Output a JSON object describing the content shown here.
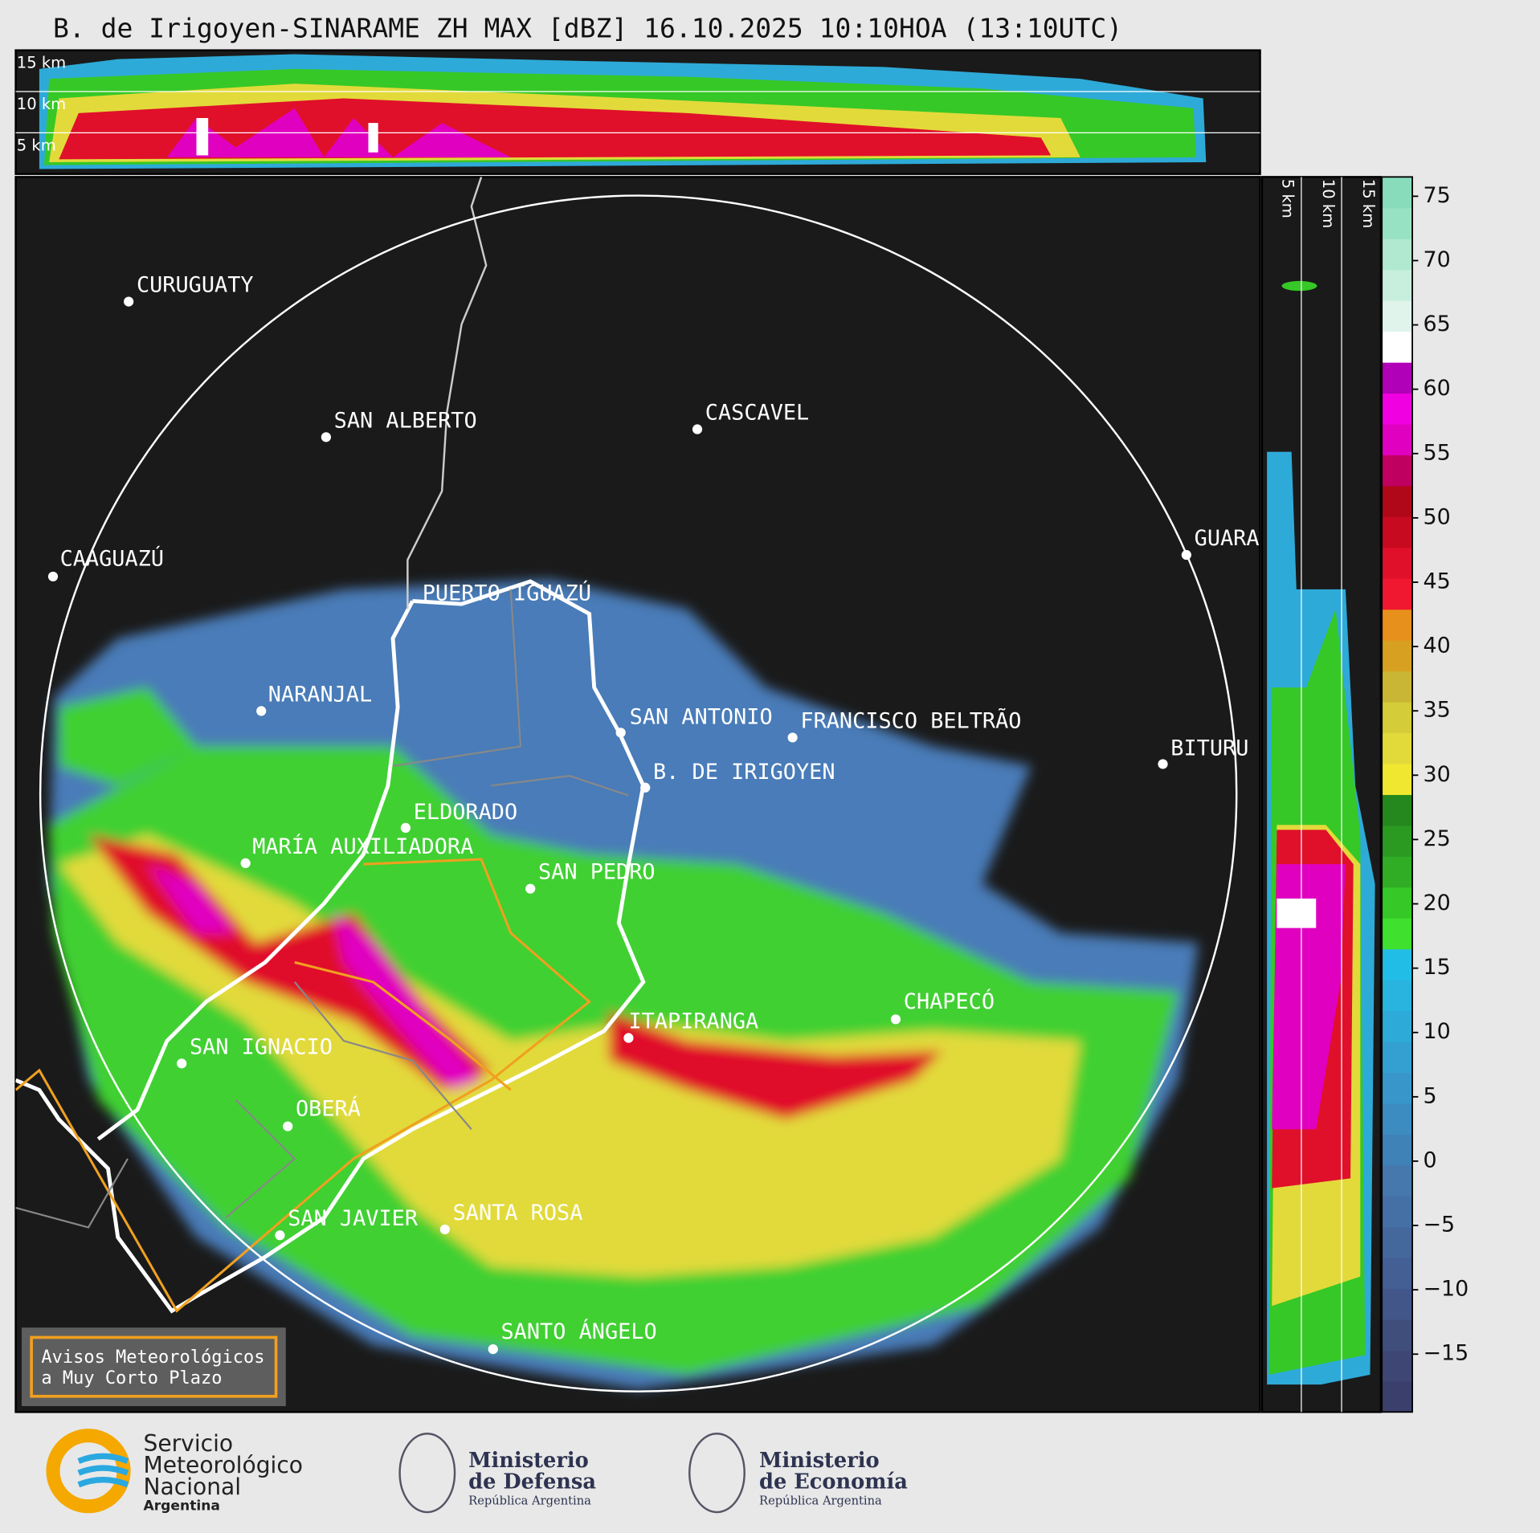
{
  "title": "B. de Irigoyen-SINARAME ZH MAX [dBZ] 16.10.2025 10:10HOA (13:10UTC)",
  "height_panel_labels": [
    "15 km",
    "10 km",
    "5 km"
  ],
  "side_panel_labels": [
    "5 km",
    "10 km",
    "15 km"
  ],
  "cities": [
    "CURUGUATY",
    "SAN ALBERTO",
    "CASCAVEL",
    "CAAGUAZÚ",
    "GUARA",
    "PUERTO IGUAZÚ",
    "NARANJAL",
    "SAN ANTONIO",
    "FRANCISCO BELTRÃO",
    "BITURU",
    "B. DE IRIGOYEN",
    "ELDORADO",
    "MARÍA AUXILIADORA",
    "SAN PEDRO",
    "ITAPIRANGA",
    "CHAPECÓ",
    "SAN IGNACIO",
    "OBERÁ",
    "SAN JAVIER",
    "SANTA ROSA",
    "SANTO ÁNGELO"
  ],
  "colorbar": {
    "lim": [
      -19.5,
      76.5
    ],
    "ticks": [
      75,
      70,
      65,
      60,
      55,
      50,
      45,
      40,
      35,
      30,
      25,
      20,
      15,
      10,
      5,
      0,
      {
        "value": -5,
        "label": "−5"
      },
      {
        "value": -10,
        "label": "−10"
      },
      {
        "value": -15,
        "label": "−15"
      }
    ],
    "colors": [
      "#3b3f6b",
      "#3e4673",
      "#404e7c",
      "#43568a",
      "#435f93",
      "#44679c",
      "#4570a6",
      "#4678ae",
      "#3f82b8",
      "#3c8cc2",
      "#3896cb",
      "#34a0d2",
      "#2eaad8",
      "#28b4df",
      "#22bde6",
      "#3fe02e",
      "#36c827",
      "#30ad24",
      "#2a9a21",
      "#24881e",
      "#f0e830",
      "#e2da3a",
      "#d4cc38",
      "#c8b634",
      "#d8a020",
      "#e8901c",
      "#f01830",
      "#e0102a",
      "#c80a20",
      "#b00818",
      "#c00060",
      "#e000c0",
      "#f000e0",
      "#b000b8",
      "#ffffff",
      "#e0f4ec",
      "#c8eede",
      "#b0e8d0",
      "#98e2c4",
      "#88dcbc"
    ]
  },
  "warning": [
    "Avisos Meteorológicos",
    "a Muy Corto Plazo"
  ],
  "logos": [
    [
      "Servicio",
      "Meteorológico",
      "Nacional",
      "Argentina"
    ],
    [
      "Ministerio",
      "de Defensa",
      "República Argentina"
    ],
    [
      "Ministerio",
      "de Economía",
      "República Argentina"
    ]
  ]
}
